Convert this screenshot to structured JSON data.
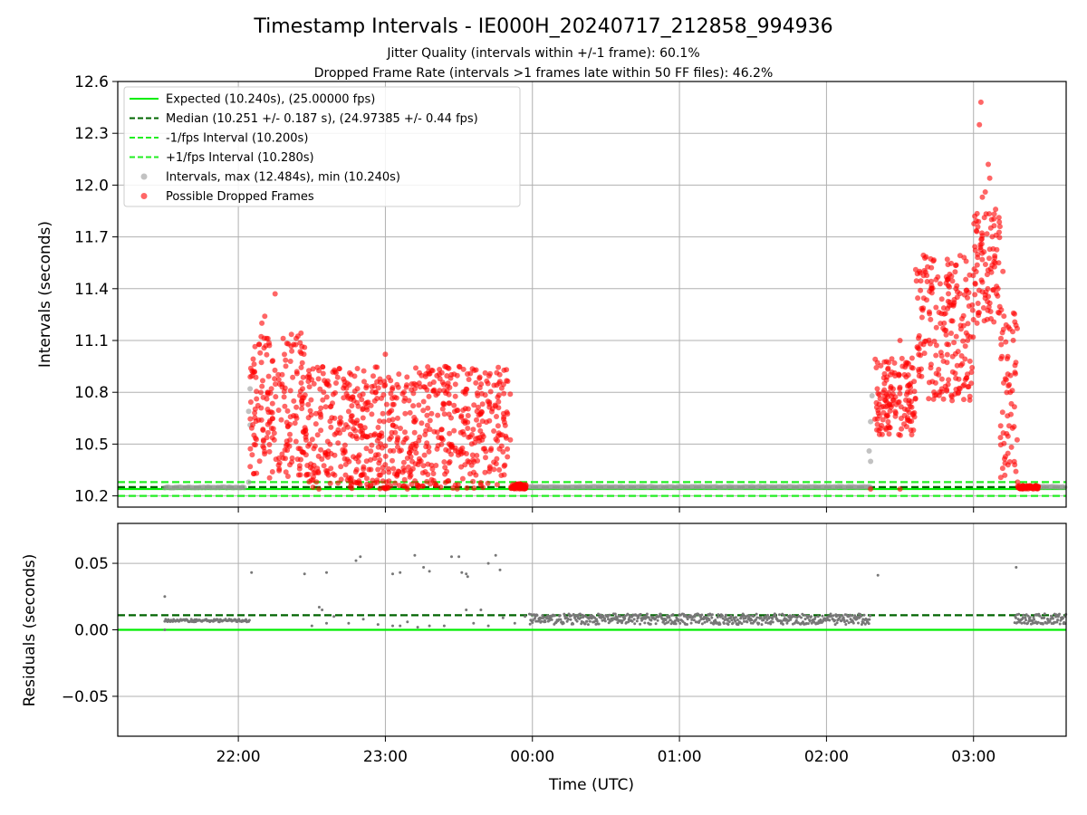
{
  "chart_data": [
    {
      "type": "scatter",
      "title": "Timestamp Intervals - IE000H_20240717_212858_994936",
      "subtitle_lines": [
        "Jitter Quality (intervals within +/-1 frame): 60.1%",
        "Dropped Frame Rate (intervals >1 frames late within 50 FF files): 46.2%"
      ],
      "xlabel": "",
      "ylabel": "Intervals (seconds)",
      "xlim_hours": [
        21.18,
        27.63
      ],
      "ylim": [
        10.135,
        12.6
      ],
      "yticks": [
        10.2,
        10.5,
        10.8,
        11.1,
        11.4,
        11.7,
        12.0,
        12.3,
        12.6
      ],
      "ytick_labels": [
        "10.2",
        "10.5",
        "10.8",
        "11.1",
        "11.4",
        "11.7",
        "12.0",
        "12.3",
        "12.6"
      ],
      "grid": true,
      "legend_position": "top-left",
      "reference_lines": [
        {
          "label": "Expected (10.240s), (25.00000 fps)",
          "value": 10.24,
          "color": "#00ee00",
          "style": "solid"
        },
        {
          "label": "Median (10.251 +/- 0.187 s), (24.97385 +/- 0.44 fps)",
          "value": 10.251,
          "color": "#006400",
          "style": "dashed"
        },
        {
          "label": "-1/fps Interval (10.200s)",
          "value": 10.2,
          "color": "#22ee22",
          "style": "dashed"
        },
        {
          "label": "+1/fps Interval (10.280s)",
          "value": 10.28,
          "color": "#22ee22",
          "style": "dashed"
        }
      ],
      "series": [
        {
          "name": "Intervals, max (12.484s), min (10.240s)",
          "color": "#999999",
          "marker": "circle",
          "segments": [
            {
              "start_hour": 21.5,
              "end_hour": 22.05,
              "baseline": 10.247
            },
            {
              "start_hour": 23.98,
              "end_hour": 26.3,
              "baseline": 10.25
            },
            {
              "start_hour": 27.32,
              "end_hour": 27.63,
              "baseline": 10.25
            }
          ],
          "points": [
            [
              22.08,
              10.82
            ],
            [
              22.07,
              10.69
            ],
            [
              22.08,
              10.61
            ],
            [
              22.07,
              10.28
            ],
            [
              26.3,
              10.63
            ],
            [
              26.29,
              10.46
            ],
            [
              26.3,
              10.4
            ],
            [
              26.31,
              10.78
            ]
          ]
        },
        {
          "name": "Possible Dropped Frames",
          "color": "#ff0000",
          "marker": "circle",
          "clusters": [
            {
              "start_hour": 22.08,
              "end_hour": 22.45,
              "y_min": 10.3,
              "y_max": 11.15
            },
            {
              "start_hour": 22.45,
              "end_hour": 23.85,
              "y_min": 10.24,
              "y_max": 10.95
            },
            {
              "start_hour": 23.85,
              "end_hour": 23.96,
              "y_min": 10.24,
              "y_max": 10.27
            },
            {
              "start_hour": 26.33,
              "end_hour": 26.6,
              "y_min": 10.55,
              "y_max": 11.0
            },
            {
              "start_hour": 26.6,
              "end_hour": 27.0,
              "y_min": 10.75,
              "y_max": 11.6
            },
            {
              "start_hour": 27.0,
              "end_hour": 27.18,
              "y_min": 11.2,
              "y_max": 11.85
            },
            {
              "start_hour": 27.18,
              "end_hour": 27.3,
              "y_min": 10.3,
              "y_max": 11.3
            },
            {
              "start_hour": 27.3,
              "end_hour": 27.44,
              "y_min": 10.24,
              "y_max": 10.26
            }
          ],
          "points": [
            [
              22.25,
              11.37
            ],
            [
              22.18,
              11.24
            ],
            [
              22.16,
              11.2
            ],
            [
              22.34,
              11.08
            ],
            [
              22.45,
              11.06
            ],
            [
              23.0,
              11.02
            ],
            [
              27.05,
              12.48
            ],
            [
              27.04,
              12.35
            ],
            [
              27.1,
              12.12
            ],
            [
              27.11,
              12.04
            ],
            [
              27.08,
              11.96
            ],
            [
              27.06,
              11.93
            ],
            [
              27.15,
              11.86
            ],
            [
              27.2,
              11.5
            ],
            [
              27.25,
              10.8
            ],
            [
              26.5,
              11.1
            ],
            [
              26.8,
              11.2
            ],
            [
              27.28,
              10.38
            ],
            [
              27.3,
              10.28
            ],
            [
              26.3,
              10.24
            ],
            [
              26.5,
              10.24
            ],
            [
              26.55,
              10.64
            ]
          ]
        }
      ]
    },
    {
      "type": "scatter",
      "xlabel": "Time (UTC)",
      "ylabel": "Residuals (seconds)",
      "xlim_hours": [
        21.18,
        27.63
      ],
      "ylim": [
        -0.08,
        0.08
      ],
      "yticks": [
        -0.05,
        0.0,
        0.05
      ],
      "ytick_labels": [
        "−0.05",
        "0.00",
        "0.05"
      ],
      "xticks_hours": [
        22,
        23,
        24,
        25,
        26,
        27
      ],
      "xtick_labels": [
        "22:00",
        "23:00",
        "00:00",
        "01:00",
        "02:00",
        "03:00"
      ],
      "grid": true,
      "reference_lines": [
        {
          "value": 0.0,
          "color": "#00ee00",
          "style": "solid"
        },
        {
          "value": 0.011,
          "color": "#006400",
          "style": "dashed"
        }
      ],
      "series": [
        {
          "color": "#777777",
          "marker": "dot",
          "segments": [
            {
              "start_hour": 21.5,
              "end_hour": 22.08,
              "baseline": 0.007,
              "spread": 0.002
            },
            {
              "start_hour": 23.98,
              "end_hour": 26.3,
              "baseline": 0.008,
              "spread": 0.008
            },
            {
              "start_hour": 27.28,
              "end_hour": 27.63,
              "baseline": 0.008,
              "spread": 0.008
            }
          ],
          "points": [
            [
              21.5,
              0.025
            ],
            [
              21.5,
              0.0
            ],
            [
              22.09,
              0.043
            ],
            [
              22.45,
              0.042
            ],
            [
              22.6,
              0.043
            ],
            [
              22.8,
              0.052
            ],
            [
              22.83,
              0.055
            ],
            [
              23.05,
              0.042
            ],
            [
              23.1,
              0.043
            ],
            [
              23.2,
              0.056
            ],
            [
              23.26,
              0.047
            ],
            [
              23.3,
              0.044
            ],
            [
              23.45,
              0.055
            ],
            [
              23.5,
              0.055
            ],
            [
              23.52,
              0.043
            ],
            [
              23.55,
              0.042
            ],
            [
              23.56,
              0.04
            ],
            [
              23.7,
              0.05
            ],
            [
              23.75,
              0.056
            ],
            [
              23.78,
              0.045
            ],
            [
              26.35,
              0.041
            ],
            [
              27.29,
              0.047
            ],
            [
              22.5,
              0.003
            ],
            [
              22.55,
              0.017
            ],
            [
              22.57,
              0.015
            ],
            [
              22.6,
              0.005
            ],
            [
              22.65,
              0.01
            ],
            [
              22.75,
              0.005
            ],
            [
              22.85,
              0.008
            ],
            [
              22.95,
              0.004
            ],
            [
              23.05,
              0.003
            ],
            [
              23.1,
              0.003
            ],
            [
              23.15,
              0.006
            ],
            [
              23.22,
              0.002
            ],
            [
              23.3,
              0.003
            ],
            [
              23.4,
              0.003
            ],
            [
              23.55,
              0.015
            ],
            [
              23.6,
              0.005
            ],
            [
              23.65,
              0.015
            ],
            [
              23.7,
              0.003
            ],
            [
              23.8,
              0.009
            ],
            [
              23.88,
              0.005
            ],
            [
              23.95,
              0.01
            ]
          ]
        }
      ]
    }
  ],
  "legend": {
    "items": [
      {
        "label": "Expected (10.240s), (25.00000 fps)",
        "kind": "line",
        "color": "#00ee00",
        "dash": ""
      },
      {
        "label": "Median (10.251 +/- 0.187 s), (24.97385 +/- 0.44 fps)",
        "kind": "line",
        "color": "#006400",
        "dash": "6,3"
      },
      {
        "label": "-1/fps Interval (10.200s)",
        "kind": "line",
        "color": "#22ee22",
        "dash": "6,3"
      },
      {
        "label": "+1/fps Interval (10.280s)",
        "kind": "line",
        "color": "#22ee22",
        "dash": "6,3"
      },
      {
        "label": "Intervals, max (12.484s), min (10.240s)",
        "kind": "marker",
        "color": "#999999",
        "dash": ""
      },
      {
        "label": "Possible Dropped Frames",
        "kind": "marker",
        "color": "#ff0000",
        "dash": ""
      }
    ]
  }
}
